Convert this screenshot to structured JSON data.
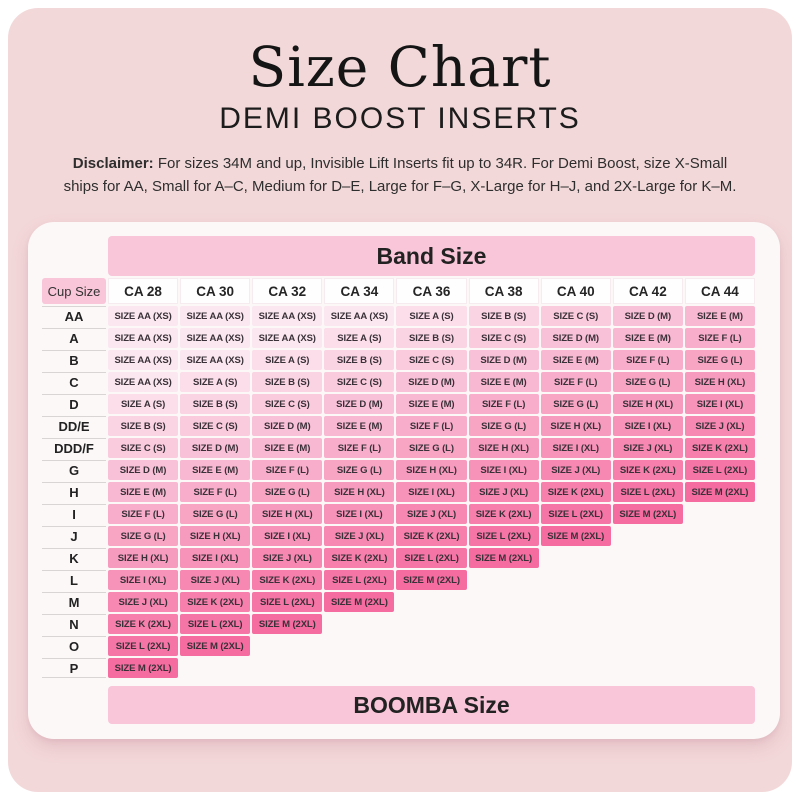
{
  "colors": {
    "outer_background": "#FFFFFF",
    "panel_pink": "#F3D8D9",
    "card_white": "#FCF8F8",
    "header_band_pink": "#F9C5D8",
    "row_separator": "#D9D5D5",
    "cell_text": "#3A3138"
  },
  "header": {
    "title": "Size Chart",
    "subtitle": "DEMI BOOST INSERTS",
    "disclaimer_label": "Disclaimer:",
    "disclaimer_text": "For sizes 34M and up, Invisible Lift Inserts fit up to 34R. For Demi Boost, size X-Small ships for AA, Small for A–C, Medium for D–E, Large for F–G, X-Large for H–J, and 2X-Large for K–M."
  },
  "chart_data": {
    "type": "table",
    "title": "Size Chart",
    "subtitle": "DEMI BOOST INSERTS",
    "column_axis_title": "Band Size",
    "row_axis_title": "Cup Size",
    "footer_axis_title": "BOOMBA Size",
    "columns": [
      "CA 28",
      "CA 30",
      "CA 32",
      "CA 34",
      "CA 36",
      "CA 38",
      "CA 40",
      "CA 42",
      "CA 44"
    ],
    "size_ladder": [
      {
        "label": "SIZE AA (XS)",
        "color": "#FBE7EF"
      },
      {
        "label": "SIZE A (S)",
        "color": "#FBDEE9"
      },
      {
        "label": "SIZE B (S)",
        "color": "#FAD4E3"
      },
      {
        "label": "SIZE C (S)",
        "color": "#FACBDD"
      },
      {
        "label": "SIZE D (M)",
        "color": "#F9C1D7"
      },
      {
        "label": "SIZE E (M)",
        "color": "#F9B8D1"
      },
      {
        "label": "SIZE F (L)",
        "color": "#F8AECB"
      },
      {
        "label": "SIZE G (L)",
        "color": "#F8A5C4"
      },
      {
        "label": "SIZE H (XL)",
        "color": "#F79BBE"
      },
      {
        "label": "SIZE I (XL)",
        "color": "#F792B8"
      },
      {
        "label": "SIZE J (XL)",
        "color": "#F688B2"
      },
      {
        "label": "SIZE K (2XL)",
        "color": "#F67FAC"
      },
      {
        "label": "SIZE L (2XL)",
        "color": "#F575A6"
      },
      {
        "label": "SIZE M (2XL)",
        "color": "#F56CA0"
      }
    ],
    "rows": [
      {
        "cup": "AA",
        "cells": [
          0,
          0,
          0,
          0,
          1,
          2,
          3,
          4,
          5
        ]
      },
      {
        "cup": "A",
        "cells": [
          0,
          0,
          0,
          1,
          2,
          3,
          4,
          5,
          6
        ]
      },
      {
        "cup": "B",
        "cells": [
          0,
          0,
          1,
          2,
          3,
          4,
          5,
          6,
          7
        ]
      },
      {
        "cup": "C",
        "cells": [
          0,
          1,
          2,
          3,
          4,
          5,
          6,
          7,
          8
        ]
      },
      {
        "cup": "D",
        "cells": [
          1,
          2,
          3,
          4,
          5,
          6,
          7,
          8,
          9
        ]
      },
      {
        "cup": "DD/E",
        "cells": [
          2,
          3,
          4,
          5,
          6,
          7,
          8,
          9,
          10
        ]
      },
      {
        "cup": "DDD/F",
        "cells": [
          3,
          4,
          5,
          6,
          7,
          8,
          9,
          10,
          11
        ]
      },
      {
        "cup": "G",
        "cells": [
          4,
          5,
          6,
          7,
          8,
          9,
          10,
          11,
          12
        ]
      },
      {
        "cup": "H",
        "cells": [
          5,
          6,
          7,
          8,
          9,
          10,
          11,
          12,
          13
        ]
      },
      {
        "cup": "I",
        "cells": [
          6,
          7,
          8,
          9,
          10,
          11,
          12,
          13,
          null
        ]
      },
      {
        "cup": "J",
        "cells": [
          7,
          8,
          9,
          10,
          11,
          12,
          13,
          null,
          null
        ]
      },
      {
        "cup": "K",
        "cells": [
          8,
          9,
          10,
          11,
          12,
          13,
          null,
          null,
          null
        ]
      },
      {
        "cup": "L",
        "cells": [
          9,
          10,
          11,
          12,
          13,
          null,
          null,
          null,
          null
        ]
      },
      {
        "cup": "M",
        "cells": [
          10,
          11,
          12,
          13,
          null,
          null,
          null,
          null,
          null
        ]
      },
      {
        "cup": "N",
        "cells": [
          11,
          12,
          13,
          null,
          null,
          null,
          null,
          null,
          null
        ]
      },
      {
        "cup": "O",
        "cells": [
          12,
          13,
          null,
          null,
          null,
          null,
          null,
          null,
          null
        ]
      },
      {
        "cup": "P",
        "cells": [
          13,
          null,
          null,
          null,
          null,
          null,
          null,
          null,
          null
        ]
      }
    ]
  }
}
